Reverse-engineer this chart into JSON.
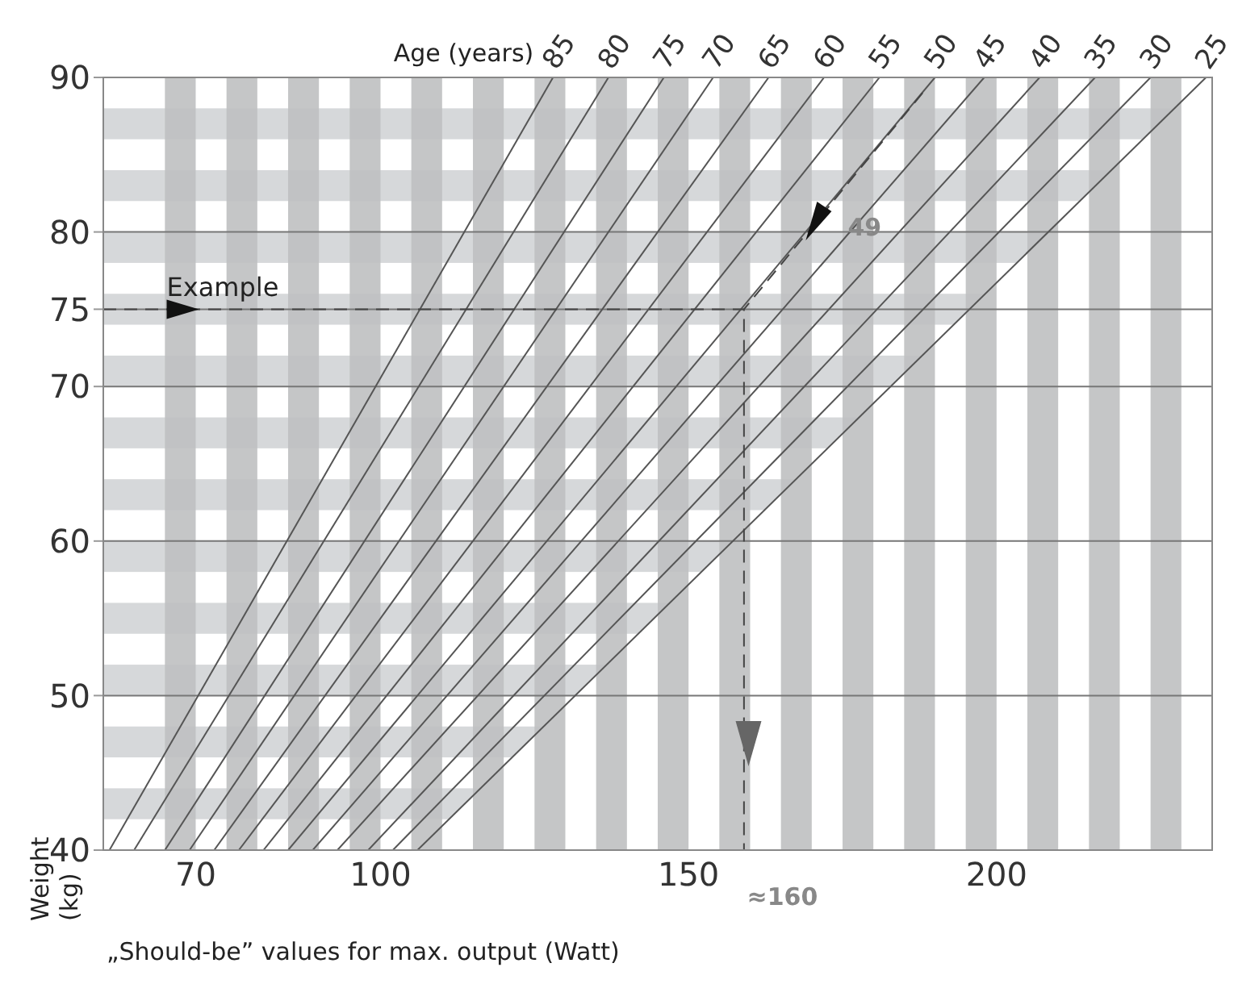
{
  "chart_data": {
    "type": "line",
    "legend_title": "Age (years)",
    "xlabel": "„Should-be” values for max. output (Watt)",
    "ylabel": "Weight (kg)",
    "series": [
      {
        "name": "85",
        "color": "#555555",
        "x": [
          56,
          128
        ],
        "values": [
          40,
          90
        ]
      },
      {
        "name": "80",
        "color": "#555555",
        "x": [
          60,
          137
        ],
        "values": [
          40,
          90
        ]
      },
      {
        "name": "75",
        "color": "#555555",
        "x": [
          65,
          146
        ],
        "values": [
          40,
          90
        ]
      },
      {
        "name": "70",
        "color": "#555555",
        "x": [
          69,
          154
        ],
        "values": [
          40,
          90
        ]
      },
      {
        "name": "65",
        "color": "#555555",
        "x": [
          73,
          163
        ],
        "values": [
          40,
          90
        ]
      },
      {
        "name": "60",
        "color": "#555555",
        "x": [
          77,
          172
        ],
        "values": [
          40,
          90
        ]
      },
      {
        "name": "55",
        "color": "#555555",
        "x": [
          81,
          181
        ],
        "values": [
          40,
          90
        ]
      },
      {
        "name": "50",
        "color": "#555555",
        "x": [
          85,
          190
        ],
        "values": [
          40,
          90
        ]
      },
      {
        "name": "45",
        "color": "#555555",
        "x": [
          89,
          198
        ],
        "values": [
          40,
          90
        ]
      },
      {
        "name": "40",
        "color": "#555555",
        "x": [
          93,
          207
        ],
        "values": [
          40,
          90
        ]
      },
      {
        "name": "35",
        "color": "#555555",
        "x": [
          98,
          216
        ],
        "values": [
          40,
          90
        ]
      },
      {
        "name": "30",
        "color": "#555555",
        "x": [
          102,
          225
        ],
        "values": [
          40,
          90
        ]
      },
      {
        "name": "25",
        "color": "#555555",
        "x": [
          106,
          234
        ],
        "values": [
          40,
          90
        ]
      },
      {
        "color": "#444444",
        "line_style": "dashed",
        "x": [
          55,
          159,
          159
        ],
        "values": [
          75,
          75,
          40
        ]
      },
      {
        "color": "#444444",
        "line_style": "dashed",
        "x": [
          188,
          159
        ],
        "values": [
          89,
          75
        ]
      }
    ],
    "annotations": [
      {
        "text": "Example",
        "x": 70,
        "y": 75
      },
      "49",
      {
        "text": "≈160",
        "x": 160,
        "y": 40
      }
    ],
    "xlim": [
      55,
      235
    ],
    "xticks": [
      70,
      100,
      150,
      200
    ],
    "ylim": [
      40,
      90
    ],
    "yticks": [
      40,
      50,
      60,
      70,
      75,
      80,
      90
    ],
    "bands": [
      {
        "axis": "y",
        "from": 42,
        "to": 44,
        "color": "#d6d8da"
      },
      {
        "axis": "y",
        "from": 46,
        "to": 48,
        "color": "#d6d8da"
      },
      {
        "axis": "y",
        "from": 50,
        "to": 52,
        "color": "#d6d8da"
      },
      {
        "axis": "y",
        "from": 54,
        "to": 56,
        "color": "#d6d8da"
      },
      {
        "axis": "y",
        "from": 58,
        "to": 60,
        "color": "#d6d8da"
      },
      {
        "axis": "y",
        "from": 62,
        "to": 64,
        "color": "#d6d8da"
      },
      {
        "axis": "y",
        "from": 66,
        "to": 68,
        "color": "#d6d8da"
      },
      {
        "axis": "y",
        "from": 70,
        "to": 72,
        "color": "#d6d8da"
      },
      {
        "axis": "y",
        "from": 74,
        "to": 76,
        "color": "#d6d8da"
      },
      {
        "axis": "y",
        "from": 78,
        "to": 80,
        "color": "#d6d8da"
      },
      {
        "axis": "y",
        "from": 82,
        "to": 84,
        "color": "#d6d8da"
      },
      {
        "axis": "y",
        "from": 86,
        "to": 88,
        "color": "#d6d8da"
      },
      {
        "axis": "x",
        "from": 65,
        "to": 70,
        "color": "#bfc0c1"
      },
      {
        "axis": "x",
        "from": 75,
        "to": 80,
        "color": "#bfc0c1"
      },
      {
        "axis": "x",
        "from": 85,
        "to": 90,
        "color": "#bfc0c1"
      },
      {
        "axis": "x",
        "from": 95,
        "to": 100,
        "color": "#bfc0c1"
      },
      {
        "axis": "x",
        "from": 105,
        "to": 110,
        "color": "#bfc0c1"
      },
      {
        "axis": "x",
        "from": 115,
        "to": 120,
        "color": "#bfc0c1"
      },
      {
        "axis": "x",
        "from": 125,
        "to": 130,
        "color": "#bfc0c1"
      },
      {
        "axis": "x",
        "from": 135,
        "to": 140,
        "color": "#bfc0c1"
      },
      {
        "axis": "x",
        "from": 145,
        "to": 150,
        "color": "#bfc0c1"
      },
      {
        "axis": "x",
        "from": 155,
        "to": 160,
        "color": "#bfc0c1"
      },
      {
        "axis": "x",
        "from": 165,
        "to": 170,
        "color": "#bfc0c1"
      },
      {
        "axis": "x",
        "from": 175,
        "to": 180,
        "color": "#bfc0c1"
      },
      {
        "axis": "x",
        "from": 185,
        "to": 190,
        "color": "#bfc0c1"
      },
      {
        "axis": "x",
        "from": 195,
        "to": 200,
        "color": "#bfc0c1"
      },
      {
        "axis": "x",
        "from": 205,
        "to": 210,
        "color": "#bfc0c1"
      },
      {
        "axis": "x",
        "from": 215,
        "to": 220,
        "color": "#bfc0c1"
      },
      {
        "axis": "x",
        "from": 225,
        "to": 230,
        "color": "#bfc0c1"
      }
    ],
    "grid": "y",
    "marker": "none",
    "line_style": "solid"
  }
}
